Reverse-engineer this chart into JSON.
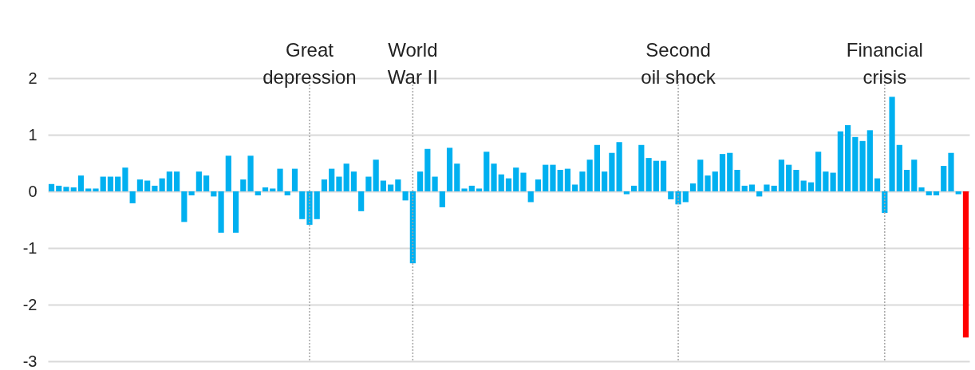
{
  "chart_data": {
    "type": "bar",
    "categories": [
      null,
      null,
      null,
      null,
      null,
      null,
      null,
      null,
      null,
      null,
      null,
      null,
      null,
      null,
      null,
      null,
      null,
      null,
      null,
      null,
      null,
      null,
      null,
      null,
      null,
      null,
      null,
      null,
      null,
      null,
      null,
      null,
      null,
      null,
      null,
      null,
      null,
      null,
      null,
      null,
      null,
      null,
      null,
      null,
      null,
      null,
      null,
      null,
      null,
      null,
      null,
      null,
      null,
      null,
      null,
      null,
      null,
      null,
      null,
      null,
      null,
      null,
      null,
      null,
      null,
      null,
      null,
      null,
      null,
      null,
      null,
      null,
      null,
      null,
      null,
      null,
      null,
      null,
      null,
      null,
      null,
      null,
      null,
      null,
      null,
      null,
      null,
      null,
      null,
      null,
      null,
      null,
      null,
      null,
      null,
      null,
      null,
      null,
      null,
      null,
      null,
      null,
      null,
      null,
      null,
      null,
      null,
      null,
      null,
      null,
      null,
      null,
      null,
      null,
      null,
      null,
      null,
      null,
      null,
      null,
      null,
      null,
      null,
      null,
      null
    ],
    "values": [
      0.13,
      0.1,
      0.08,
      0.07,
      0.28,
      0.05,
      0.05,
      0.26,
      0.26,
      0.26,
      0.42,
      -0.21,
      0.21,
      0.19,
      0.1,
      0.23,
      0.35,
      0.35,
      -0.54,
      -0.07,
      0.35,
      0.28,
      -0.09,
      -0.73,
      0.63,
      -0.73,
      0.21,
      0.63,
      -0.07,
      0.07,
      0.05,
      0.4,
      -0.07,
      0.4,
      -0.49,
      -0.59,
      -0.49,
      0.21,
      0.4,
      0.26,
      0.49,
      0.35,
      -0.35,
      0.26,
      0.56,
      0.19,
      0.12,
      0.21,
      -0.16,
      -1.27,
      0.35,
      0.75,
      0.26,
      -0.28,
      0.77,
      0.49,
      0.05,
      0.1,
      0.05,
      0.7,
      0.49,
      0.3,
      0.23,
      0.42,
      0.33,
      -0.19,
      0.21,
      0.47,
      0.47,
      0.38,
      0.4,
      0.12,
      0.35,
      0.56,
      0.82,
      0.35,
      0.68,
      0.87,
      -0.05,
      0.1,
      0.82,
      0.59,
      0.54,
      0.54,
      -0.14,
      -0.23,
      -0.19,
      0.14,
      0.56,
      0.28,
      0.35,
      0.66,
      0.68,
      0.38,
      0.1,
      0.12,
      -0.09,
      0.12,
      0.1,
      0.56,
      0.47,
      0.38,
      0.19,
      0.16,
      0.7,
      0.35,
      0.33,
      1.06,
      1.17,
      0.96,
      0.89,
      1.08,
      0.23,
      -0.38,
      1.67,
      0.82,
      0.38,
      0.56,
      0.07,
      -0.07,
      -0.07,
      0.45,
      0.68,
      -0.05,
      -2.58
    ],
    "colors": [
      "#00b0f0",
      "#00b0f0",
      "#00b0f0",
      "#00b0f0",
      "#00b0f0",
      "#00b0f0",
      "#00b0f0",
      "#00b0f0",
      "#00b0f0",
      "#00b0f0",
      "#00b0f0",
      "#00b0f0",
      "#00b0f0",
      "#00b0f0",
      "#00b0f0",
      "#00b0f0",
      "#00b0f0",
      "#00b0f0",
      "#00b0f0",
      "#00b0f0",
      "#00b0f0",
      "#00b0f0",
      "#00b0f0",
      "#00b0f0",
      "#00b0f0",
      "#00b0f0",
      "#00b0f0",
      "#00b0f0",
      "#00b0f0",
      "#00b0f0",
      "#00b0f0",
      "#00b0f0",
      "#00b0f0",
      "#00b0f0",
      "#00b0f0",
      "#00b0f0",
      "#00b0f0",
      "#00b0f0",
      "#00b0f0",
      "#00b0f0",
      "#00b0f0",
      "#00b0f0",
      "#00b0f0",
      "#00b0f0",
      "#00b0f0",
      "#00b0f0",
      "#00b0f0",
      "#00b0f0",
      "#00b0f0",
      "#00b0f0",
      "#00b0f0",
      "#00b0f0",
      "#00b0f0",
      "#00b0f0",
      "#00b0f0",
      "#00b0f0",
      "#00b0f0",
      "#00b0f0",
      "#00b0f0",
      "#00b0f0",
      "#00b0f0",
      "#00b0f0",
      "#00b0f0",
      "#00b0f0",
      "#00b0f0",
      "#00b0f0",
      "#00b0f0",
      "#00b0f0",
      "#00b0f0",
      "#00b0f0",
      "#00b0f0",
      "#00b0f0",
      "#00b0f0",
      "#00b0f0",
      "#00b0f0",
      "#00b0f0",
      "#00b0f0",
      "#00b0f0",
      "#00b0f0",
      "#00b0f0",
      "#00b0f0",
      "#00b0f0",
      "#00b0f0",
      "#00b0f0",
      "#00b0f0",
      "#00b0f0",
      "#00b0f0",
      "#00b0f0",
      "#00b0f0",
      "#00b0f0",
      "#00b0f0",
      "#00b0f0",
      "#00b0f0",
      "#00b0f0",
      "#00b0f0",
      "#00b0f0",
      "#00b0f0",
      "#00b0f0",
      "#00b0f0",
      "#00b0f0",
      "#00b0f0",
      "#00b0f0",
      "#00b0f0",
      "#00b0f0",
      "#00b0f0",
      "#00b0f0",
      "#00b0f0",
      "#00b0f0",
      "#00b0f0",
      "#00b0f0",
      "#00b0f0",
      "#00b0f0",
      "#00b0f0",
      "#00b0f0",
      "#00b0f0",
      "#00b0f0",
      "#00b0f0",
      "#00b0f0",
      "#00b0f0",
      "#00b0f0",
      "#00b0f0",
      "#00b0f0",
      "#00b0f0",
      "#00b0f0",
      "#ff0000"
    ],
    "ylim": [
      -3,
      2
    ],
    "yticks": [
      -3,
      -2,
      -1,
      0,
      1,
      2
    ],
    "grid": "y",
    "tick_labels": "y",
    "annotations": [
      "Great\ndepression",
      "World\nWar II",
      "Second\noil shock",
      "Financial\ncrisis"
    ]
  }
}
